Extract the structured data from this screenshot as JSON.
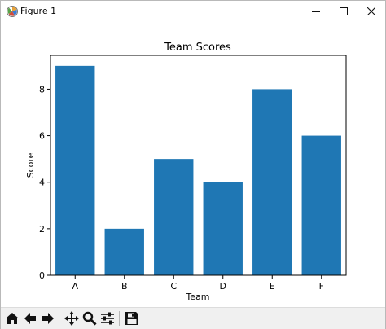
{
  "window": {
    "title": "Figure 1"
  },
  "toolbar": {
    "buttons": [
      {
        "name": "home",
        "icon": "home-icon"
      },
      {
        "name": "back",
        "icon": "back-arrow-icon"
      },
      {
        "name": "forward",
        "icon": "forward-arrow-icon"
      },
      {
        "name": "pan",
        "icon": "pan-icon"
      },
      {
        "name": "zoom",
        "icon": "zoom-icon"
      },
      {
        "name": "subplots",
        "icon": "configure-subplots-icon"
      },
      {
        "name": "save",
        "icon": "save-icon"
      }
    ]
  },
  "chart_data": {
    "type": "bar",
    "title": "Team Scores",
    "xlabel": "Team",
    "ylabel": "Score",
    "categories": [
      "A",
      "B",
      "C",
      "D",
      "E",
      "F"
    ],
    "values": [
      9,
      2,
      5,
      4,
      8,
      6
    ],
    "ylim": [
      0,
      9.45
    ],
    "yticks": [
      0,
      2,
      4,
      6,
      8
    ],
    "bar_color": "#1f77b4",
    "grid": false,
    "legend": "none"
  }
}
